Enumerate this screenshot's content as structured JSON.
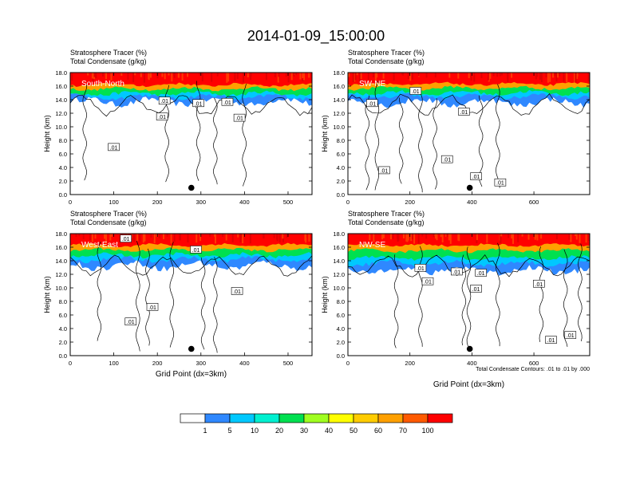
{
  "figure": {
    "title": "2014-01-09_15:00:00",
    "colorbar_levels": [
      "1",
      "5",
      "10",
      "20",
      "30",
      "40",
      "50",
      "60",
      "70",
      "100"
    ],
    "colorbar_colors": [
      "#ffffff",
      "#2f88ff",
      "#00c8ff",
      "#00f0d0",
      "#00e050",
      "#00ff00",
      "#a0ff20",
      "#ffff00",
      "#ffcc00",
      "#ffa000",
      "#ff5a00",
      "#ff0000"
    ]
  },
  "chart_data": [
    {
      "type": "heatmap",
      "panel": "South-North",
      "title_line1": "Stratosphere Tracer   (%)",
      "title_line2": "Total Condensate   (g/kg)",
      "xlabel": "",
      "ylabel": "Height (km)",
      "xlim": [
        0,
        555
      ],
      "ylim": [
        0,
        18
      ],
      "x_ticks": [
        "0",
        "100",
        "200",
        "300",
        "400",
        "500"
      ],
      "y_ticks": [
        "0.0",
        "2.0",
        "4.0",
        "6.0",
        "8.0",
        "10.0",
        "12.0",
        "14.0",
        "16.0",
        "18.0"
      ],
      "tracer_layers_km": {
        "red_base": 16.2,
        "orange_base": 15.6,
        "green_base": 14.9,
        "cyan_base": 14.4,
        "blue_base": 13.7
      },
      "contour_labels": [
        ".01",
        ".01",
        ".01",
        ".01",
        ".01",
        ".01"
      ],
      "marker_x": 278,
      "marker_y": 1.0
    },
    {
      "type": "heatmap",
      "panel": "SW-NE",
      "title_line1": "Stratosphere Tracer   (%)",
      "title_line2": "Total Condensate   (g/kg)",
      "xlabel": "",
      "ylabel": "Height (km)",
      "xlim": [
        0,
        780
      ],
      "ylim": [
        0,
        18
      ],
      "x_ticks": [
        "0",
        "200",
        "400",
        "600"
      ],
      "y_ticks": [
        "0.0",
        "2.0",
        "4.0",
        "6.0",
        "8.0",
        "10.0",
        "12.0",
        "14.0",
        "16.0",
        "18.0"
      ],
      "tracer_layers_km": {
        "red_base": 16.3,
        "orange_base": 15.7,
        "green_base": 15.0,
        "cyan_base": 14.5,
        "blue_base": 13.6
      },
      "contour_labels": [
        ".01",
        ".01",
        ".01",
        ".01",
        ".01",
        ".01",
        ".01"
      ],
      "marker_x": 393,
      "marker_y": 1.0
    },
    {
      "type": "heatmap",
      "panel": "West-East",
      "title_line1": "Stratosphere Tracer   (%)",
      "title_line2": "Total Condensate   (g/kg)",
      "xlabel": "Grid Point (dx=3km)",
      "ylabel": "Height (km)",
      "xlim": [
        0,
        555
      ],
      "ylim": [
        0,
        18
      ],
      "x_ticks": [
        "0",
        "100",
        "200",
        "300",
        "400",
        "500"
      ],
      "y_ticks": [
        "0.0",
        "2.0",
        "4.0",
        "6.0",
        "8.0",
        "10.0",
        "12.0",
        "14.0",
        "16.0",
        "18.0"
      ],
      "tracer_layers_km": {
        "red_base": 16.3,
        "orange_base": 15.6,
        "green_base": 14.8,
        "cyan_base": 14.2,
        "blue_base": 13.3
      },
      "contour_labels": [
        ".01",
        ".01",
        ".01",
        ".01",
        ".01"
      ],
      "marker_x": 278,
      "marker_y": 1.0
    },
    {
      "type": "heatmap",
      "panel": "NW-SE",
      "title_line1": "Stratosphere Tracer   (%)",
      "title_line2": "Total Condensate   (g/kg)",
      "xlabel": "Grid Point (dx=3km)",
      "ylabel": "Height (km)",
      "xlim": [
        0,
        780
      ],
      "ylim": [
        0,
        18
      ],
      "x_ticks": [
        "0",
        "200",
        "400",
        "600"
      ],
      "y_ticks": [
        "0.0",
        "2.0",
        "4.0",
        "6.0",
        "8.0",
        "10.0",
        "12.0",
        "14.0",
        "16.0",
        "18.0"
      ],
      "tracer_layers_km": {
        "red_base": 16.3,
        "orange_base": 15.5,
        "green_base": 14.4,
        "cyan_base": 13.6,
        "blue_base": 12.6
      },
      "contour_labels": [
        ".01",
        ".01",
        ".01",
        ".01",
        ".01",
        ".01",
        ".01",
        ".01"
      ],
      "marker_x": 393,
      "marker_y": 1.0,
      "footnote": "Total Condensate Contours: .01 to .01 by .000"
    }
  ]
}
